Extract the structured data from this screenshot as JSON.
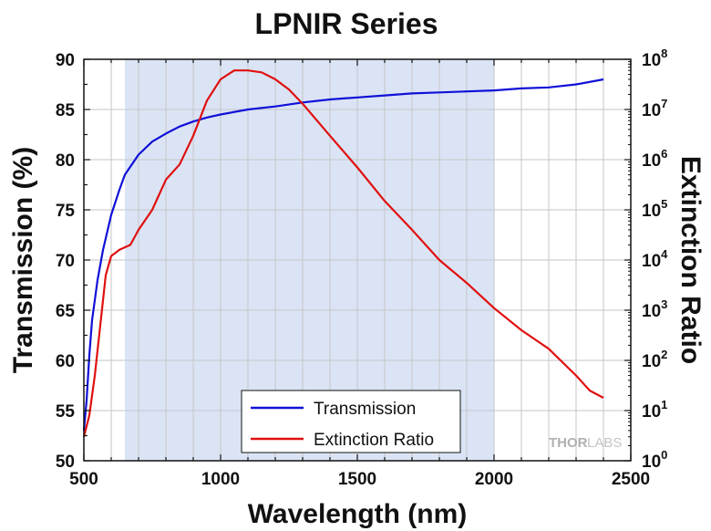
{
  "chart_data": {
    "type": "line",
    "title": "LPNIR Series",
    "xlabel": "Wavelength (nm)",
    "ylabel": "Transmission (%)",
    "y2label": "Extinction Ratio",
    "xlim": [
      500,
      2500
    ],
    "ylim": [
      50,
      90
    ],
    "y2lim_log10": [
      0,
      8
    ],
    "y2scale": "log",
    "x_ticks": [
      "500",
      "1000",
      "1500",
      "2000",
      "2500"
    ],
    "y_ticks": [
      "50",
      "55",
      "60",
      "65",
      "70",
      "75",
      "80",
      "85",
      "90"
    ],
    "y2_tick_base": "10",
    "y2_tick_exponents": [
      "0",
      "1",
      "2",
      "3",
      "4",
      "5",
      "6",
      "7",
      "8"
    ],
    "grid": true,
    "shaded_band": [
      650,
      2000
    ],
    "shaded_color": "#dbe4f5",
    "legend_position": "bottom-center",
    "series": [
      {
        "name": "Transmission",
        "axis": "left",
        "color": "#1010d8",
        "x": [
          500,
          510,
          520,
          530,
          550,
          570,
          600,
          630,
          650,
          700,
          750,
          800,
          850,
          900,
          950,
          1000,
          1100,
          1200,
          1300,
          1400,
          1500,
          1600,
          1650,
          1700,
          1800,
          1900,
          2000,
          2100,
          2200,
          2300,
          2400
        ],
        "y": [
          53,
          56,
          60.5,
          64,
          68,
          71,
          74.5,
          77,
          78.5,
          80.5,
          81.8,
          82.6,
          83.3,
          83.8,
          84.2,
          84.5,
          85.0,
          85.3,
          85.7,
          86.0,
          86.2,
          86.4,
          86.5,
          86.6,
          86.7,
          86.8,
          86.9,
          87.1,
          87.2,
          87.5,
          88.0
        ]
      },
      {
        "name": "Extinction Ratio",
        "axis": "right",
        "color": "#e01010",
        "x": [
          500,
          520,
          540,
          560,
          580,
          600,
          630,
          670,
          700,
          750,
          800,
          850,
          900,
          950,
          1000,
          1050,
          1100,
          1150,
          1200,
          1250,
          1300,
          1400,
          1500,
          1600,
          1700,
          1800,
          1900,
          2000,
          2100,
          2200,
          2300,
          2350,
          2400
        ],
        "y": [
          3,
          8,
          50,
          500,
          5000,
          12000,
          16000,
          20000,
          40000,
          100000,
          400000,
          800000,
          3000000,
          15000000,
          40000000,
          60000000,
          60000000,
          55000000,
          40000000,
          25000000,
          13000000,
          3000000,
          700000,
          150000,
          40000,
          10000,
          3500,
          1100,
          400,
          170,
          50,
          25,
          18
        ]
      }
    ],
    "watermark": [
      "THOR",
      "LABS"
    ]
  }
}
